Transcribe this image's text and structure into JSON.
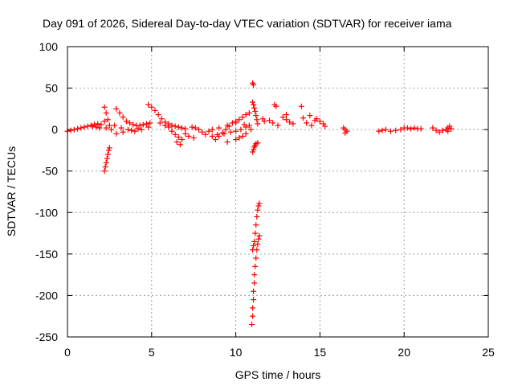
{
  "chart_data": {
    "type": "scatter",
    "title": "Day 091 of 2026, Sidereal Day-to-day VTEC variation (SDTVAR) for receiver iama",
    "xlabel": "GPS time / hours",
    "ylabel": "SDTVAR / TECUs",
    "xlim": [
      0,
      25
    ],
    "ylim": [
      -250,
      100
    ],
    "xticks": [
      0,
      5,
      10,
      15,
      20,
      25
    ],
    "yticks": [
      -250,
      -200,
      -150,
      -100,
      -50,
      0,
      50,
      100
    ],
    "grid": true,
    "marker": "plus",
    "color": "#ff0000",
    "series": [
      {
        "name": "SDTVAR",
        "points": [
          [
            0.0,
            -2
          ],
          [
            0.2,
            -1
          ],
          [
            0.4,
            0
          ],
          [
            0.6,
            1
          ],
          [
            0.8,
            2
          ],
          [
            1.0,
            3
          ],
          [
            1.2,
            4
          ],
          [
            1.4,
            5
          ],
          [
            1.6,
            6
          ],
          [
            1.8,
            7
          ],
          [
            2.0,
            6
          ],
          [
            1.7,
            3
          ],
          [
            1.5,
            4
          ],
          [
            1.9,
            2
          ],
          [
            2.2,
            27
          ],
          [
            2.3,
            20
          ],
          [
            2.4,
            12
          ],
          [
            2.5,
            5
          ],
          [
            2.6,
            0
          ],
          [
            2.2,
            10
          ],
          [
            2.3,
            2
          ],
          [
            2.2,
            -50
          ],
          [
            2.25,
            -45
          ],
          [
            2.3,
            -40
          ],
          [
            2.35,
            -35
          ],
          [
            2.4,
            -30
          ],
          [
            2.45,
            -25
          ],
          [
            2.5,
            -22
          ],
          [
            2.9,
            25
          ],
          [
            3.1,
            20
          ],
          [
            3.3,
            15
          ],
          [
            3.5,
            10
          ],
          [
            3.7,
            8
          ],
          [
            3.9,
            6
          ],
          [
            4.1,
            5
          ],
          [
            4.3,
            5
          ],
          [
            4.5,
            6
          ],
          [
            4.7,
            7
          ],
          [
            4.9,
            8
          ],
          [
            2.8,
            5
          ],
          [
            3.2,
            2
          ],
          [
            3.6,
            0
          ],
          [
            4.0,
            -2
          ],
          [
            4.4,
            0
          ],
          [
            4.8,
            3
          ],
          [
            2.9,
            -5
          ],
          [
            3.3,
            -3
          ],
          [
            3.8,
            -1
          ],
          [
            4.2,
            1
          ],
          [
            4.8,
            30
          ],
          [
            5.0,
            27
          ],
          [
            5.2,
            23
          ],
          [
            5.4,
            18
          ],
          [
            5.6,
            13
          ],
          [
            5.8,
            9
          ],
          [
            6.0,
            7
          ],
          [
            6.2,
            5
          ],
          [
            6.4,
            4
          ],
          [
            6.6,
            3
          ],
          [
            6.8,
            2
          ],
          [
            7.0,
            1
          ],
          [
            5.5,
            8
          ],
          [
            5.8,
            5
          ],
          [
            6.0,
            3
          ],
          [
            6.2,
            -2
          ],
          [
            6.4,
            -6
          ],
          [
            6.6,
            -9
          ],
          [
            6.8,
            -12
          ],
          [
            6.5,
            -15
          ],
          [
            6.7,
            -18
          ],
          [
            7.0,
            -5
          ],
          [
            7.2,
            -8
          ],
          [
            7.4,
            3
          ],
          [
            7.6,
            2
          ],
          [
            7.8,
            0
          ],
          [
            8.0,
            -3
          ],
          [
            8.2,
            -6
          ],
          [
            8.4,
            -2
          ],
          [
            8.6,
            0
          ],
          [
            7.5,
            -10
          ],
          [
            8.8,
            -12
          ],
          [
            9.0,
            -8
          ],
          [
            9.2,
            -4
          ],
          [
            9.4,
            0
          ],
          [
            9.6,
            4
          ],
          [
            9.8,
            8
          ],
          [
            10.0,
            10
          ],
          [
            10.2,
            12
          ],
          [
            10.4,
            15
          ],
          [
            10.6,
            18
          ],
          [
            10.8,
            20
          ],
          [
            8.6,
            -8
          ],
          [
            8.9,
            -6
          ],
          [
            9.3,
            -5
          ],
          [
            9.7,
            -3
          ],
          [
            10.0,
            -2
          ],
          [
            10.3,
            0
          ],
          [
            10.6,
            3
          ],
          [
            10.8,
            5
          ],
          [
            9.5,
            -15
          ],
          [
            10.0,
            -12
          ],
          [
            10.4,
            -8
          ],
          [
            9.0,
            2
          ],
          [
            9.5,
            5
          ],
          [
            10.0,
            8
          ],
          [
            10.5,
            6
          ],
          [
            10.2,
            -10
          ],
          [
            10.6,
            -5
          ],
          [
            10.9,
            0
          ],
          [
            11.0,
            56
          ],
          [
            11.05,
            54
          ],
          [
            11.0,
            33
          ],
          [
            11.05,
            30
          ],
          [
            11.1,
            26
          ],
          [
            11.15,
            22
          ],
          [
            11.2,
            17
          ],
          [
            11.25,
            12
          ],
          [
            11.3,
            7
          ],
          [
            11.0,
            -27
          ],
          [
            11.05,
            -24
          ],
          [
            11.1,
            -21
          ],
          [
            11.15,
            -19
          ],
          [
            11.2,
            -17
          ],
          [
            11.3,
            -16
          ],
          [
            11.0,
            -145
          ],
          [
            11.05,
            -140
          ],
          [
            11.1,
            -135
          ],
          [
            11.15,
            -125
          ],
          [
            11.2,
            -115
          ],
          [
            11.25,
            -105
          ],
          [
            11.3,
            -97
          ],
          [
            11.35,
            -92
          ],
          [
            11.4,
            -89
          ],
          [
            10.95,
            -235
          ],
          [
            11.0,
            -225
          ],
          [
            11.0,
            -215
          ],
          [
            11.05,
            -205
          ],
          [
            11.05,
            -195
          ],
          [
            11.1,
            -185
          ],
          [
            11.1,
            -175
          ],
          [
            11.15,
            -165
          ],
          [
            11.2,
            -155
          ],
          [
            11.25,
            -145
          ],
          [
            11.3,
            -138
          ],
          [
            11.35,
            -132
          ],
          [
            11.4,
            -128
          ],
          [
            11.6,
            13
          ],
          [
            11.7,
            10
          ],
          [
            12.0,
            11
          ],
          [
            12.2,
            8
          ],
          [
            12.5,
            5
          ],
          [
            12.3,
            30
          ],
          [
            12.4,
            28
          ],
          [
            12.8,
            15
          ],
          [
            13.0,
            12
          ],
          [
            13.2,
            9
          ],
          [
            13.4,
            7
          ],
          [
            13.0,
            18
          ],
          [
            13.9,
            28
          ],
          [
            14.0,
            14
          ],
          [
            14.2,
            8
          ],
          [
            14.5,
            5
          ],
          [
            14.7,
            11
          ],
          [
            14.4,
            17
          ],
          [
            14.8,
            13
          ],
          [
            15.0,
            10
          ],
          [
            15.2,
            7
          ],
          [
            15.3,
            4
          ],
          [
            16.4,
            2
          ],
          [
            16.5,
            0
          ],
          [
            16.6,
            -2
          ],
          [
            16.5,
            -4
          ],
          [
            18.5,
            -2
          ],
          [
            18.7,
            -1
          ],
          [
            18.9,
            0
          ],
          [
            19.2,
            -2
          ],
          [
            19.5,
            -1
          ],
          [
            19.8,
            0
          ],
          [
            20.0,
            2
          ],
          [
            20.2,
            2
          ],
          [
            20.4,
            1
          ],
          [
            20.6,
            2
          ],
          [
            20.8,
            1
          ],
          [
            21.0,
            1
          ],
          [
            21.7,
            2
          ],
          [
            21.9,
            -1
          ],
          [
            22.1,
            -3
          ],
          [
            22.3,
            -1
          ],
          [
            22.5,
            0
          ],
          [
            22.6,
            2
          ],
          [
            22.7,
            4
          ],
          [
            22.8,
            1
          ],
          [
            22.6,
            -2
          ]
        ]
      }
    ]
  }
}
